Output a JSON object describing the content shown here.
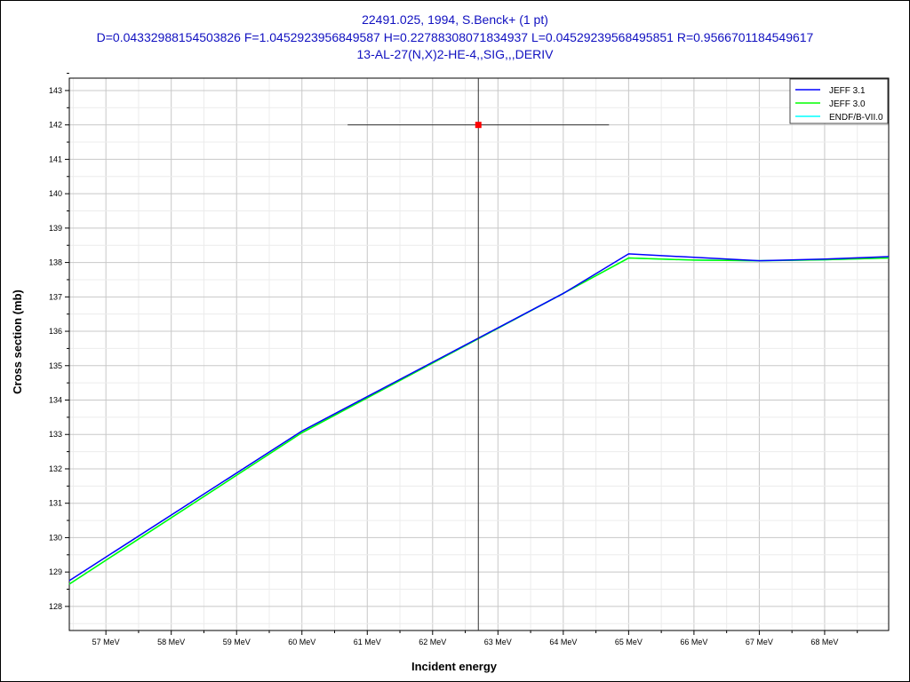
{
  "chart_data": {
    "type": "line",
    "title_lines": [
      "22491.025, 1994, S.Benck+ (1 pt)",
      "D=0.04332988154503826 F=1.0452923956849587 H=0.22788308071834937 L=0.04529239568495851 R=0.9566701184549617",
      "13-AL-27(N,X)2-HE-4,,SIG,,,DERIV"
    ],
    "xlabel": "Incident energy",
    "ylabel": "Cross section (mb)",
    "xlim": [
      56.44,
      68.98
    ],
    "ylim": [
      127.3,
      143.36
    ],
    "x_ticks": [
      57,
      58,
      59,
      60,
      61,
      62,
      63,
      64,
      65,
      66,
      67,
      68
    ],
    "x_tick_labels": [
      "57 MeV",
      "58 MeV",
      "59 MeV",
      "60 MeV",
      "61 MeV",
      "62 MeV",
      "63 MeV",
      "64 MeV",
      "65 MeV",
      "66 MeV",
      "67 MeV",
      "68 MeV"
    ],
    "y_ticks": [
      128,
      129,
      130,
      131,
      132,
      133,
      134,
      135,
      136,
      137,
      138,
      139,
      140,
      141,
      142,
      143
    ],
    "grid": true,
    "legend_position": "top-right",
    "series": [
      {
        "name": "JEFF 3.1",
        "color": "#0000ff",
        "x": [
          56.44,
          60,
          64,
          65,
          66,
          67,
          68,
          68.98
        ],
        "y": [
          128.75,
          133.1,
          137.1,
          138.25,
          138.15,
          138.05,
          138.1,
          138.17
        ]
      },
      {
        "name": "JEFF 3.0",
        "color": "#00ff00",
        "x": [
          56.44,
          60,
          64,
          65,
          66,
          67,
          68,
          68.98
        ],
        "y": [
          128.65,
          133.05,
          137.1,
          138.13,
          138.07,
          138.05,
          138.08,
          138.13
        ]
      },
      {
        "name": "ENDF/B-VII.0",
        "color": "#00ffff",
        "x": [
          56.44,
          60,
          64,
          65,
          66,
          67,
          68,
          68.98
        ],
        "y": [
          128.65,
          133.05,
          137.1,
          138.13,
          138.07,
          138.05,
          138.08,
          138.13
        ]
      }
    ],
    "experimental_point": {
      "x": 62.7,
      "y": 142.0,
      "x_err_low": 60.7,
      "x_err_high": 64.7,
      "color": "#ff0000"
    },
    "cursor_x": 62.7
  }
}
